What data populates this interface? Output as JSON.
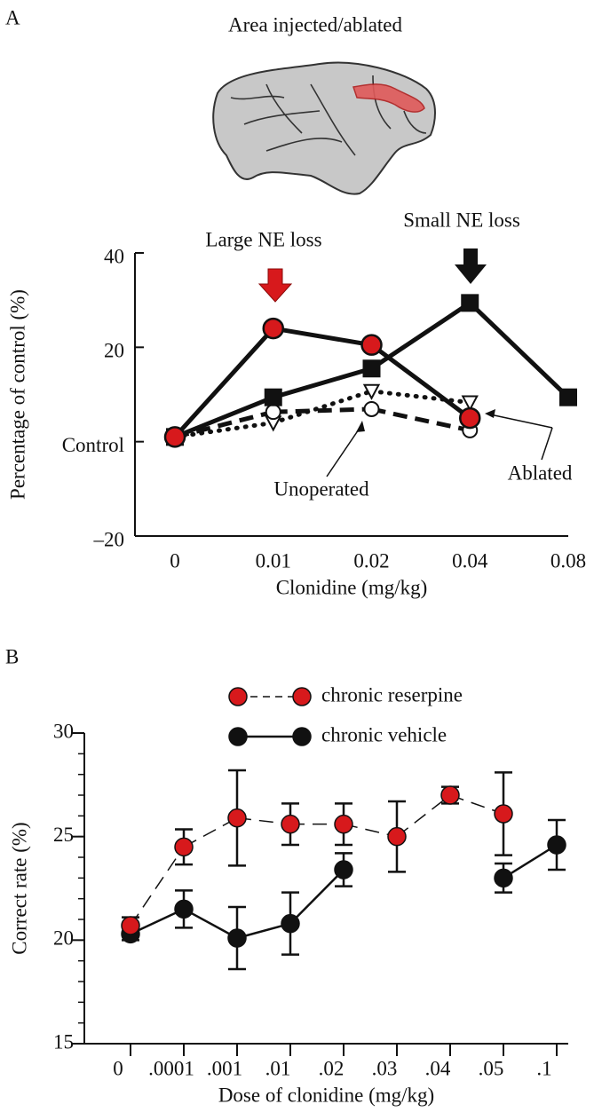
{
  "chart_data": [
    {
      "type": "line",
      "panel": "A",
      "image_caption": "Area injected/ablated",
      "x_label": "Clonidine (mg/kg)",
      "y_label": "Percentage of control (%)",
      "categories": [
        "0",
        "0.01",
        "0.02",
        "0.04",
        "0.08"
      ],
      "series": [
        {
          "name": "Large NE loss",
          "color": "#d7191c",
          "marker": "circle",
          "dash": "solid",
          "values": [
            1,
            24,
            20.5,
            5,
            null
          ]
        },
        {
          "name": "Small NE loss",
          "color": "#111111",
          "marker": "square",
          "dash": "solid",
          "values": [
            1,
            9.4,
            15.5,
            29.4,
            9.4
          ]
        },
        {
          "name": "Ablated",
          "color": "#111111",
          "marker": "triangle",
          "dash": "dotted",
          "values": [
            1,
            4,
            10.7,
            8.3,
            null
          ]
        },
        {
          "name": "Unoperated",
          "color": "#111111",
          "marker": "open-circle",
          "dash": "dashed",
          "values": [
            1,
            6.3,
            6.9,
            2.4,
            null
          ]
        }
      ],
      "ylim": [
        -20,
        40
      ],
      "yticks": [
        {
          "value": -20,
          "label": "–20"
        },
        {
          "value": 0,
          "label": "Control"
        },
        20,
        40
      ]
    },
    {
      "type": "errorbar-line",
      "panel": "B",
      "x_label": "Dose of clonidine (mg/kg)",
      "y_label": "Correct rate (%)",
      "categories": [
        "0",
        ".0001",
        ".001",
        ".01",
        ".02",
        ".03",
        ".04",
        ".05",
        ".1"
      ],
      "legend": "top",
      "series": [
        {
          "name": "chronic reserpine",
          "color": "#d7191c",
          "dash": "dashed",
          "values": [
            20.7,
            24.5,
            25.9,
            25.6,
            25.6,
            25.0,
            27.0,
            26.1,
            null
          ],
          "errors": [
            0.4,
            0.85,
            2.3,
            1.0,
            1.0,
            1.7,
            0.4,
            2.0,
            null
          ]
        },
        {
          "name": "chronic vehicle",
          "color": "#111111",
          "dash": "solid",
          "values": [
            20.3,
            21.5,
            20.1,
            20.8,
            23.4,
            null,
            null,
            23.0,
            24.6
          ],
          "errors": [
            0.3,
            0.9,
            1.5,
            1.5,
            0.8,
            null,
            null,
            0.7,
            1.2
          ]
        }
      ],
      "ylim": [
        15,
        30
      ],
      "yticks": [
        15,
        20,
        25,
        30
      ]
    }
  ]
}
